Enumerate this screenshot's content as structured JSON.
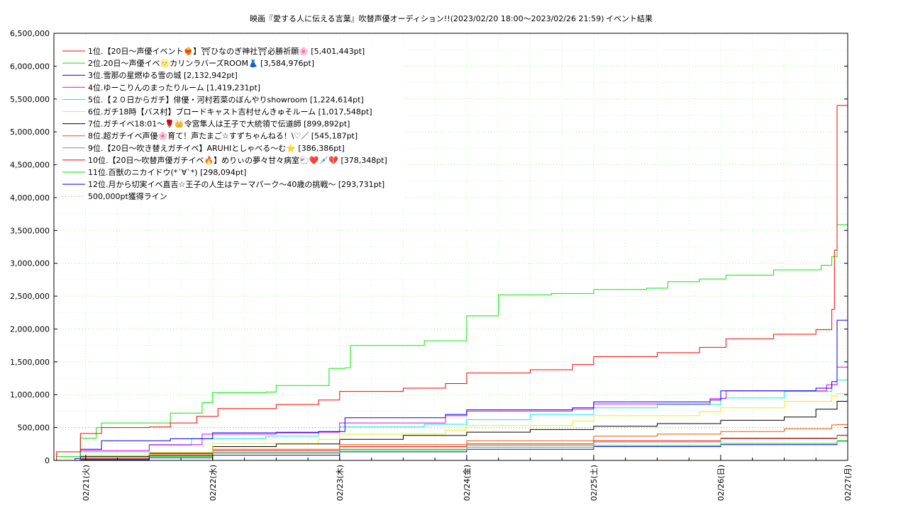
{
  "chart_data": {
    "type": "line",
    "title": "映画『愛する人に伝える言葉』吹替声優オーディション!!(2023/02/20 18:00～2023/02/26 21:59)",
    "subtitle": "イベント結果",
    "xlabel": "",
    "ylabel": "",
    "ylim": [
      0,
      6500000
    ],
    "xlim": [
      "2023-02-20 18:00",
      "2023-02-27 00:00"
    ],
    "x_ticks": [
      "02/21(火)",
      "02/22(水)",
      "02/23(木)",
      "02/24(金)",
      "02/25(土)",
      "02/26(日)",
      "02/27(月)"
    ],
    "y_ticks": [
      "0",
      "500,000",
      "1,000,000",
      "1,500,000",
      "2,000,000",
      "2,500,000",
      "3,000,000",
      "3,500,000",
      "4,000,000",
      "4,500,000",
      "5,000,000",
      "5,500,000",
      "6,000,000",
      "6,500,000"
    ],
    "grid": true,
    "legend_position": "top-left",
    "threshold": {
      "name": "500,000pt獲得ライン",
      "value": 500000,
      "color": "#ff6666"
    },
    "series": [
      {
        "name": "1位.【20日～声優イベント❤️‍🔥】⛩ひなのぎ神社⛩必勝祈願🌸 [5,401,443pt]",
        "color": "#ff0000",
        "points": [
          [
            "2023-02-20 18:00",
            0
          ],
          [
            "2023-02-20 18:30",
            130000
          ],
          [
            "2023-02-20 22:00",
            130000
          ],
          [
            "2023-02-20 23:00",
            410000
          ],
          [
            "2023-02-21 03:00",
            500000
          ],
          [
            "2023-02-21 12:00",
            510000
          ],
          [
            "2023-02-21 16:00",
            570000
          ],
          [
            "2023-02-21 21:00",
            670000
          ],
          [
            "2023-02-22 01:00",
            790000
          ],
          [
            "2023-02-22 12:00",
            850000
          ],
          [
            "2023-02-22 20:00",
            920000
          ],
          [
            "2023-02-23 00:00",
            1050000
          ],
          [
            "2023-02-23 12:00",
            1100000
          ],
          [
            "2023-02-23 20:00",
            1170000
          ],
          [
            "2023-02-24 00:00",
            1330000
          ],
          [
            "2023-02-24 12:00",
            1380000
          ],
          [
            "2023-02-24 20:00",
            1460000
          ],
          [
            "2023-02-25 00:00",
            1580000
          ],
          [
            "2023-02-25 12:00",
            1640000
          ],
          [
            "2023-02-25 20:00",
            1720000
          ],
          [
            "2023-02-26 01:00",
            1850000
          ],
          [
            "2023-02-26 10:00",
            1920000
          ],
          [
            "2023-02-26 18:00",
            1990000
          ],
          [
            "2023-02-26 21:00",
            2300000
          ],
          [
            "2023-02-26 21:30",
            3200000
          ],
          [
            "2023-02-26 21:59",
            5401443
          ],
          [
            "2023-02-27 00:00",
            5401443
          ]
        ]
      },
      {
        "name": "2位.20日～声優イベ🌝カリンラバーズROOM👗 [3,584,976pt]",
        "color": "#00ee00",
        "points": [
          [
            "2023-02-20 18:00",
            0
          ],
          [
            "2023-02-20 18:30",
            60000
          ],
          [
            "2023-02-20 22:00",
            60000
          ],
          [
            "2023-02-20 23:00",
            340000
          ],
          [
            "2023-02-21 02:00",
            500000
          ],
          [
            "2023-02-21 03:00",
            570000
          ],
          [
            "2023-02-21 15:00",
            570000
          ],
          [
            "2023-02-21 16:00",
            720000
          ],
          [
            "2023-02-21 22:00",
            880000
          ],
          [
            "2023-02-22 00:00",
            1030000
          ],
          [
            "2023-02-22 10:00",
            1040000
          ],
          [
            "2023-02-22 12:00",
            1140000
          ],
          [
            "2023-02-22 21:00",
            1140000
          ],
          [
            "2023-02-22 22:00",
            1400000
          ],
          [
            "2023-02-23 01:00",
            1410000
          ],
          [
            "2023-02-23 02:00",
            1750000
          ],
          [
            "2023-02-23 15:00",
            1750000
          ],
          [
            "2023-02-23 16:00",
            1820000
          ],
          [
            "2023-02-23 23:00",
            1820000
          ],
          [
            "2023-02-24 00:00",
            2200000
          ],
          [
            "2023-02-24 05:00",
            2200000
          ],
          [
            "2023-02-24 06:00",
            2520000
          ],
          [
            "2023-02-24 16:00",
            2540000
          ],
          [
            "2023-02-25 00:00",
            2600000
          ],
          [
            "2023-02-25 10:00",
            2620000
          ],
          [
            "2023-02-25 14:00",
            2720000
          ],
          [
            "2023-02-25 20:00",
            2760000
          ],
          [
            "2023-02-26 01:00",
            2820000
          ],
          [
            "2023-02-26 10:00",
            2900000
          ],
          [
            "2023-02-26 19:00",
            2970000
          ],
          [
            "2023-02-26 21:00",
            3100000
          ],
          [
            "2023-02-26 21:59",
            3584976
          ],
          [
            "2023-02-27 00:00",
            3584976
          ]
        ]
      },
      {
        "name": "3位.雪那の星燃ゆる雪の城 [2,132,942pt]",
        "color": "#0000ee",
        "points": [
          [
            "2023-02-20 18:00",
            0
          ],
          [
            "2023-02-20 22:00",
            30000
          ],
          [
            "2023-02-20 23:00",
            170000
          ],
          [
            "2023-02-21 03:00",
            300000
          ],
          [
            "2023-02-21 16:00",
            330000
          ],
          [
            "2023-02-22 00:00",
            420000
          ],
          [
            "2023-02-22 20:00",
            440000
          ],
          [
            "2023-02-23 01:00",
            650000
          ],
          [
            "2023-02-23 20:00",
            700000
          ],
          [
            "2023-02-24 00:00",
            770000
          ],
          [
            "2023-02-24 20:00",
            800000
          ],
          [
            "2023-02-25 00:00",
            890000
          ],
          [
            "2023-02-25 22:00",
            920000
          ],
          [
            "2023-02-26 00:00",
            1060000
          ],
          [
            "2023-02-26 18:00",
            1100000
          ],
          [
            "2023-02-26 21:00",
            1200000
          ],
          [
            "2023-02-26 21:59",
            2132942
          ],
          [
            "2023-02-27 00:00",
            2132942
          ]
        ]
      },
      {
        "name": "4位.ゆーこりんのまったりルーム [1,419,231pt]",
        "color": "#ee00ee",
        "points": [
          [
            "2023-02-20 18:00",
            0
          ],
          [
            "2023-02-20 23:00",
            150000
          ],
          [
            "2023-02-21 12:00",
            240000
          ],
          [
            "2023-02-21 22:00",
            400000
          ],
          [
            "2023-02-22 12:00",
            430000
          ],
          [
            "2023-02-23 00:00",
            570000
          ],
          [
            "2023-02-23 20:00",
            680000
          ],
          [
            "2023-02-24 00:00",
            750000
          ],
          [
            "2023-02-24 20:00",
            780000
          ],
          [
            "2023-02-25 00:00",
            860000
          ],
          [
            "2023-02-25 22:00",
            940000
          ],
          [
            "2023-02-26 01:00",
            1060000
          ],
          [
            "2023-02-26 20:00",
            1150000
          ],
          [
            "2023-02-26 21:59",
            1419231
          ],
          [
            "2023-02-27 00:00",
            1419231
          ]
        ]
      },
      {
        "name": "5位.【２０日からガチ】俳優・河村若菜のぼんやりshowroom [1,224,614pt]",
        "color": "#00eeee",
        "points": [
          [
            "2023-02-20 18:00",
            0
          ],
          [
            "2023-02-20 23:00",
            130000
          ],
          [
            "2023-02-21 12:00",
            230000
          ],
          [
            "2023-02-21 20:00",
            330000
          ],
          [
            "2023-02-22 10:00",
            370000
          ],
          [
            "2023-02-22 20:00",
            440000
          ],
          [
            "2023-02-23 00:00",
            510000
          ],
          [
            "2023-02-23 16:00",
            550000
          ],
          [
            "2023-02-24 00:00",
            620000
          ],
          [
            "2023-02-24 12:00",
            700000
          ],
          [
            "2023-02-25 00:00",
            800000
          ],
          [
            "2023-02-25 12:00",
            850000
          ],
          [
            "2023-02-26 00:00",
            950000
          ],
          [
            "2023-02-26 12:00",
            1050000
          ],
          [
            "2023-02-26 21:00",
            1150000
          ],
          [
            "2023-02-26 21:59",
            1224614
          ],
          [
            "2023-02-27 00:00",
            1224614
          ]
        ]
      },
      {
        "name": "6位.ガチ18時【バス村】ブロードキャスト吉村せんきゅそルーム [1,017,548pt]",
        "color": "#eeee00",
        "points": [
          [
            "2023-02-20 18:00",
            0
          ],
          [
            "2023-02-20 23:00",
            80000
          ],
          [
            "2023-02-21 12:00",
            120000
          ],
          [
            "2023-02-22 00:00",
            260000
          ],
          [
            "2023-02-22 20:00",
            320000
          ],
          [
            "2023-02-23 00:00",
            400000
          ],
          [
            "2023-02-23 20:00",
            460000
          ],
          [
            "2023-02-24 00:00",
            530000
          ],
          [
            "2023-02-24 20:00",
            600000
          ],
          [
            "2023-02-25 00:00",
            680000
          ],
          [
            "2023-02-25 20:00",
            740000
          ],
          [
            "2023-02-26 00:00",
            800000
          ],
          [
            "2023-02-26 12:00",
            900000
          ],
          [
            "2023-02-26 21:00",
            980000
          ],
          [
            "2023-02-26 21:59",
            1017548
          ],
          [
            "2023-02-27 00:00",
            1017548
          ]
        ]
      },
      {
        "name": "7位.ガチイベ18:01～🌹👑令宮隼人は王子で大統領で伝道師 [899,892pt]",
        "color": "#000000",
        "points": [
          [
            "2023-02-20 18:00",
            0
          ],
          [
            "2023-02-20 23:00",
            60000
          ],
          [
            "2023-02-21 12:00",
            110000
          ],
          [
            "2023-02-22 00:00",
            210000
          ],
          [
            "2023-02-22 12:00",
            250000
          ],
          [
            "2023-02-23 00:00",
            320000
          ],
          [
            "2023-02-23 12:00",
            380000
          ],
          [
            "2023-02-24 00:00",
            430000
          ],
          [
            "2023-02-24 12:00",
            470000
          ],
          [
            "2023-02-25 00:00",
            520000
          ],
          [
            "2023-02-25 12:00",
            560000
          ],
          [
            "2023-02-26 00:00",
            610000
          ],
          [
            "2023-02-26 12:00",
            660000
          ],
          [
            "2023-02-26 18:00",
            780000
          ],
          [
            "2023-02-26 21:59",
            899892
          ],
          [
            "2023-02-27 00:00",
            899892
          ]
        ]
      },
      {
        "name": "8位.超ガチイベ声優🌸育て！声たまご☆すずちゃんねる！\\♡／ [545,187pt]",
        "color": "#ee5500",
        "points": [
          [
            "2023-02-20 18:00",
            0
          ],
          [
            "2023-02-20 23:00",
            40000
          ],
          [
            "2023-02-21 12:00",
            100000
          ],
          [
            "2023-02-22 00:00",
            170000
          ],
          [
            "2023-02-23 00:00",
            240000
          ],
          [
            "2023-02-24 00:00",
            300000
          ],
          [
            "2023-02-25 00:00",
            370000
          ],
          [
            "2023-02-25 12:00",
            400000
          ],
          [
            "2023-02-26 00:00",
            440000
          ],
          [
            "2023-02-26 12:00",
            480000
          ],
          [
            "2023-02-26 21:00",
            540000
          ],
          [
            "2023-02-26 21:59",
            545187
          ],
          [
            "2023-02-27 00:00",
            545187
          ]
        ]
      },
      {
        "name": "9位.【20日～吹き替えガチイベ】ARUHIとしゃべる～む⭐ [386,386pt]",
        "color": "#888888",
        "points": [
          [
            "2023-02-20 18:00",
            0
          ],
          [
            "2023-02-20 23:00",
            30000
          ],
          [
            "2023-02-21 12:00",
            70000
          ],
          [
            "2023-02-22 00:00",
            120000
          ],
          [
            "2023-02-23 00:00",
            170000
          ],
          [
            "2023-02-24 00:00",
            230000
          ],
          [
            "2023-02-25 00:00",
            280000
          ],
          [
            "2023-02-26 00:00",
            330000
          ],
          [
            "2023-02-26 21:59",
            386386
          ],
          [
            "2023-02-27 00:00",
            386386
          ]
        ]
      },
      {
        "name": "10位.【20日～吹替声優ガチイベ🔥】めりぃの夢々甘々病室🐑❤️💉💔 [378,348pt]",
        "color": "#ff0000",
        "points": [
          [
            "2023-02-20 18:00",
            0
          ],
          [
            "2023-02-20 23:00",
            20000
          ],
          [
            "2023-02-21 12:00",
            80000
          ],
          [
            "2023-02-22 00:00",
            150000
          ],
          [
            "2023-02-23 00:00",
            210000
          ],
          [
            "2023-02-24 00:00",
            250000
          ],
          [
            "2023-02-25 00:00",
            300000
          ],
          [
            "2023-02-26 00:00",
            340000
          ],
          [
            "2023-02-26 21:59",
            378348
          ],
          [
            "2023-02-27 00:00",
            378348
          ]
        ]
      },
      {
        "name": "11位.百獣のニカイドウ(*´∀`*) [298,094pt]",
        "color": "#00ee00",
        "points": [
          [
            "2023-02-20 18:00",
            0
          ],
          [
            "2023-02-20 23:00",
            20000
          ],
          [
            "2023-02-21 12:00",
            60000
          ],
          [
            "2023-02-22 00:00",
            110000
          ],
          [
            "2023-02-23 00:00",
            160000
          ],
          [
            "2023-02-24 00:00",
            200000
          ],
          [
            "2023-02-25 00:00",
            230000
          ],
          [
            "2023-02-26 00:00",
            260000
          ],
          [
            "2023-02-26 21:59",
            298094
          ],
          [
            "2023-02-27 00:00",
            298094
          ]
        ]
      },
      {
        "name": "12位.月から切実イベ直吉☆王子の人生はテーマパーク～40歳の挑戦～ [293,731pt]",
        "color": "#0000ee",
        "points": [
          [
            "2023-02-20 18:00",
            0
          ],
          [
            "2023-02-20 23:00",
            10000
          ],
          [
            "2023-02-21 12:00",
            40000
          ],
          [
            "2023-02-22 00:00",
            80000
          ],
          [
            "2023-02-23 00:00",
            130000
          ],
          [
            "2023-02-24 00:00",
            170000
          ],
          [
            "2023-02-25 00:00",
            210000
          ],
          [
            "2023-02-26 00:00",
            240000
          ],
          [
            "2023-02-26 21:59",
            293731
          ],
          [
            "2023-02-27 00:00",
            293731
          ]
        ]
      }
    ]
  }
}
